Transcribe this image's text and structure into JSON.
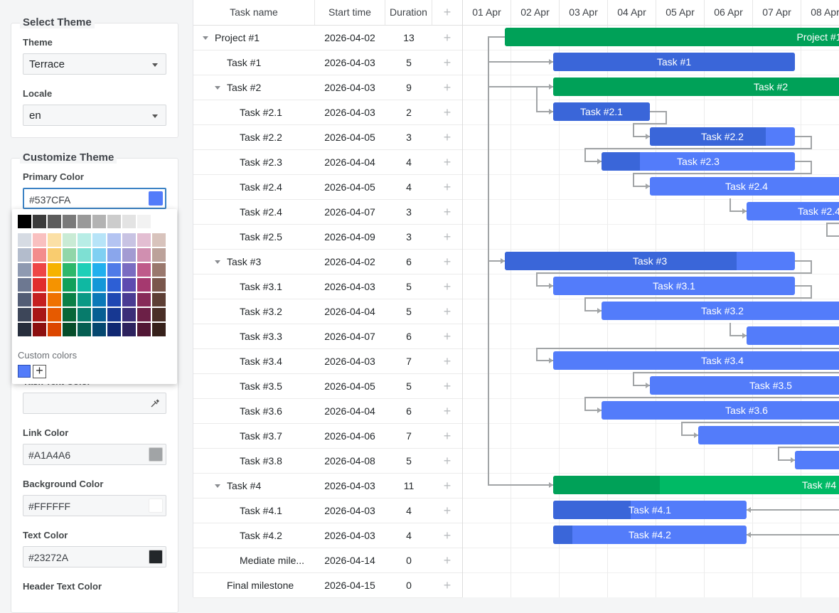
{
  "theme_panel": {
    "select_title": "Select Theme",
    "theme_label": "Theme",
    "theme_value": "Terrace",
    "locale_label": "Locale",
    "locale_value": "en",
    "customize_title": "Customize Theme",
    "primary_label": "Primary Color",
    "primary_value": "#537CFA",
    "task_text_label": "Task Text Color",
    "link_label": "Link Color",
    "link_value": "#A1A4A6",
    "bg_label": "Background Color",
    "bg_value": "#FFFFFF",
    "text_label": "Text Color",
    "text_value": "#23272A",
    "header_text_label": "Header Text Color",
    "custom_colors_label": "Custom colors",
    "add_custom": "+"
  },
  "palette_rows": [
    [
      "#000000",
      "#3c3c3c",
      "#5c5c5c",
      "#7a7a7a",
      "#999999",
      "#b3b3b3",
      "#cccccc",
      "#e3e3e3",
      "#f2f2f2",
      "#ffffff"
    ],
    [
      "#d6dbe3",
      "#f9c0c0",
      "#fbe0a6",
      "#c9ebd5",
      "#b8ede6",
      "#b7e4f8",
      "#b4c4f2",
      "#c8c3e3",
      "#e3bed2",
      "#d8c3bc"
    ],
    [
      "#b3bccc",
      "#f38c8c",
      "#f9cc6f",
      "#91d6a9",
      "#7ee0d3",
      "#7fd0f2",
      "#8aa6ec",
      "#a39bd2",
      "#d08fb0",
      "#bca29a"
    ],
    [
      "#8f9ab1",
      "#ee4646",
      "#f6b300",
      "#2db86b",
      "#1ecfb8",
      "#22b0ee",
      "#4f7be8",
      "#7a6cc2",
      "#bf5a8a",
      "#9a786d"
    ],
    [
      "#6d7891",
      "#e12c2c",
      "#f59300",
      "#10a05a",
      "#0fb8a2",
      "#1497d8",
      "#2d5fd5",
      "#5d4bb0",
      "#a5396f",
      "#7a574c"
    ],
    [
      "#535d75",
      "#c51f1f",
      "#ef7100",
      "#0b8047",
      "#0a9985",
      "#0b79b8",
      "#1f47b3",
      "#4a3b93",
      "#872b59",
      "#5e3f35"
    ],
    [
      "#3d4659",
      "#a81616",
      "#e65a00",
      "#086638",
      "#077b6b",
      "#075f93",
      "#173892",
      "#3b2e78",
      "#6c2047",
      "#4a2f27"
    ],
    [
      "#272e3d",
      "#8c0f0f",
      "#dc4600",
      "#054d2a",
      "#055e52",
      "#05476f",
      "#102872",
      "#2d225e",
      "#521735",
      "#37211b"
    ]
  ],
  "grid": {
    "columns": [
      "Task name",
      "Start time",
      "Duration"
    ],
    "add_symbol": "+",
    "rows": [
      {
        "name": "Project #1",
        "start": "2026-04-02",
        "duration": "13",
        "level": 0,
        "parent": true
      },
      {
        "name": "Task #1",
        "start": "2026-04-03",
        "duration": "5",
        "level": 1,
        "parent": false
      },
      {
        "name": "Task #2",
        "start": "2026-04-03",
        "duration": "9",
        "level": 1,
        "parent": true
      },
      {
        "name": "Task #2.1",
        "start": "2026-04-03",
        "duration": "2",
        "level": 2,
        "parent": false
      },
      {
        "name": "Task #2.2",
        "start": "2026-04-05",
        "duration": "3",
        "level": 2,
        "parent": false
      },
      {
        "name": "Task #2.3",
        "start": "2026-04-04",
        "duration": "4",
        "level": 2,
        "parent": false
      },
      {
        "name": "Task #2.4",
        "start": "2026-04-05",
        "duration": "4",
        "level": 2,
        "parent": false
      },
      {
        "name": "Task #2.4",
        "start": "2026-04-07",
        "duration": "3",
        "level": 2,
        "parent": false
      },
      {
        "name": "Task #2.5",
        "start": "2026-04-09",
        "duration": "3",
        "level": 2,
        "parent": false
      },
      {
        "name": "Task #3",
        "start": "2026-04-02",
        "duration": "6",
        "level": 1,
        "parent": true
      },
      {
        "name": "Task #3.1",
        "start": "2026-04-03",
        "duration": "5",
        "level": 2,
        "parent": false
      },
      {
        "name": "Task #3.2",
        "start": "2026-04-04",
        "duration": "5",
        "level": 2,
        "parent": false
      },
      {
        "name": "Task #3.3",
        "start": "2026-04-07",
        "duration": "6",
        "level": 2,
        "parent": false
      },
      {
        "name": "Task #3.4",
        "start": "2026-04-03",
        "duration": "7",
        "level": 2,
        "parent": false
      },
      {
        "name": "Task #3.5",
        "start": "2026-04-05",
        "duration": "5",
        "level": 2,
        "parent": false
      },
      {
        "name": "Task #3.6",
        "start": "2026-04-04",
        "duration": "6",
        "level": 2,
        "parent": false
      },
      {
        "name": "Task #3.7",
        "start": "2026-04-06",
        "duration": "7",
        "level": 2,
        "parent": false
      },
      {
        "name": "Task #3.8",
        "start": "2026-04-08",
        "duration": "5",
        "level": 2,
        "parent": false
      },
      {
        "name": "Task #4",
        "start": "2026-04-03",
        "duration": "11",
        "level": 1,
        "parent": true
      },
      {
        "name": "Task #4.1",
        "start": "2026-04-03",
        "duration": "4",
        "level": 2,
        "parent": false
      },
      {
        "name": "Task #4.2",
        "start": "2026-04-03",
        "duration": "4",
        "level": 2,
        "parent": false
      },
      {
        "name": "Mediate mile...",
        "start": "2026-04-14",
        "duration": "0",
        "level": 2,
        "parent": false
      },
      {
        "name": "Final milestone",
        "start": "2026-04-15",
        "duration": "0",
        "level": 1,
        "parent": false
      }
    ]
  },
  "chart": {
    "dates": [
      "01 Apr",
      "02 Apr",
      "03 Apr",
      "04 Apr",
      "05 Apr",
      "06 Apr",
      "07 Apr",
      "08 Apr"
    ],
    "colors": {
      "task": "#537CFA",
      "task_progress": "#3a66d9",
      "project": "#00ba65",
      "project_progress": "#00a158",
      "link": "#A1A4A6"
    },
    "bars": [
      {
        "row": 0,
        "label": "Project #1",
        "start_day": 1,
        "days": 13,
        "progress": 1.0,
        "kind": "project"
      },
      {
        "row": 1,
        "label": "Task #1",
        "start_day": 2,
        "days": 5,
        "progress": 1.0,
        "kind": "task"
      },
      {
        "row": 2,
        "label": "Task #2",
        "start_day": 2,
        "days": 9,
        "progress": 0.68,
        "kind": "project"
      },
      {
        "row": 3,
        "label": "Task #2.1",
        "start_day": 2,
        "days": 2,
        "progress": 1.0,
        "kind": "task"
      },
      {
        "row": 4,
        "label": "Task #2.2",
        "start_day": 4,
        "days": 3,
        "progress": 0.8,
        "kind": "task"
      },
      {
        "row": 5,
        "label": "Task #2.3",
        "start_day": 3,
        "days": 4,
        "progress": 0.2,
        "kind": "task"
      },
      {
        "row": 6,
        "label": "Task #2.4",
        "start_day": 4,
        "days": 4,
        "progress": 0,
        "kind": "task"
      },
      {
        "row": 7,
        "label": "Task #2.4",
        "start_day": 6,
        "days": 3,
        "progress": 0,
        "kind": "task"
      },
      {
        "row": 8,
        "label": "",
        "start_day": 8,
        "days": 3,
        "progress": 0,
        "kind": "task"
      },
      {
        "row": 9,
        "label": "Task #3",
        "start_day": 1,
        "days": 6,
        "progress": 0.8,
        "kind": "task"
      },
      {
        "row": 10,
        "label": "Task #3.1",
        "start_day": 2,
        "days": 5,
        "progress": 0,
        "kind": "task"
      },
      {
        "row": 11,
        "label": "Task #3.2",
        "start_day": 3,
        "days": 5,
        "progress": 0,
        "kind": "task"
      },
      {
        "row": 12,
        "label": "",
        "start_day": 6,
        "days": 6,
        "progress": 0,
        "kind": "task"
      },
      {
        "row": 13,
        "label": "Task #3.4",
        "start_day": 2,
        "days": 7,
        "progress": 0,
        "kind": "task"
      },
      {
        "row": 14,
        "label": "Task #3.5",
        "start_day": 4,
        "days": 5,
        "progress": 0,
        "kind": "task"
      },
      {
        "row": 15,
        "label": "Task #3.6",
        "start_day": 3,
        "days": 6,
        "progress": 0,
        "kind": "task"
      },
      {
        "row": 16,
        "label": "",
        "start_day": 5,
        "days": 7,
        "progress": 0,
        "kind": "task"
      },
      {
        "row": 17,
        "label": "",
        "start_day": 7,
        "days": 5,
        "progress": 0,
        "kind": "task"
      },
      {
        "row": 18,
        "label": "Task #4",
        "start_day": 2,
        "days": 11,
        "progress": 0.2,
        "kind": "project"
      },
      {
        "row": 19,
        "label": "Task #4.1",
        "start_day": 2,
        "days": 4,
        "progress": 0.4,
        "kind": "task"
      },
      {
        "row": 20,
        "label": "Task #4.2",
        "start_day": 2,
        "days": 4,
        "progress": 0.1,
        "kind": "task"
      }
    ]
  }
}
